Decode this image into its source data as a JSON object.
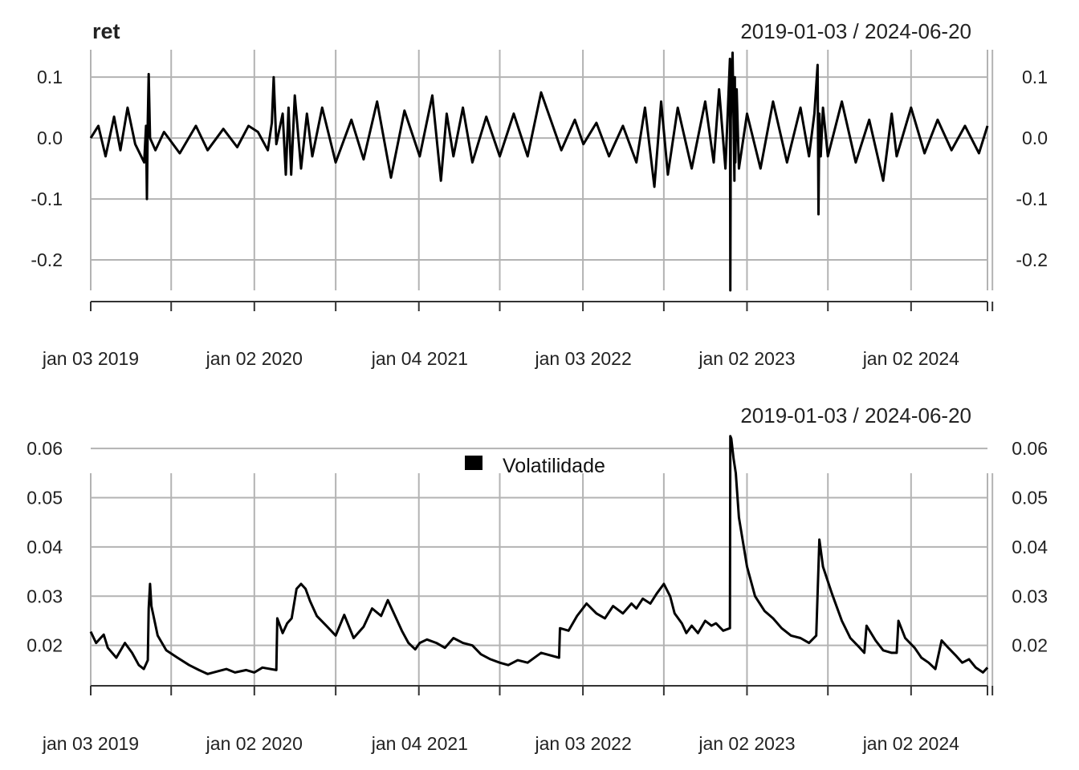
{
  "chart_data": [
    {
      "type": "line",
      "title": "ret",
      "date_range": "2019-01-03 / 2024-06-20",
      "x_tick_labels": [
        "jan 03 2019",
        "jan 02 2020",
        "jan 04 2021",
        "jan 03 2022",
        "jan 02 2023",
        "jan 02 2024"
      ],
      "y_tick_labels": [
        "0.1",
        "0.0",
        "-0.1",
        "-0.2"
      ],
      "y_ticks": [
        0.1,
        0.0,
        -0.1,
        -0.2
      ],
      "ylim": [
        -0.25,
        0.145
      ],
      "xlim": [
        "2019-01-03",
        "2024-06-20"
      ],
      "grid": true,
      "series": [
        {
          "color": "#000000",
          "x": [
            "2019-01-03",
            "2019-01-20",
            "2019-02-05",
            "2019-02-24",
            "2019-03-10",
            "2019-03-26",
            "2019-04-12",
            "2019-05-02",
            "2019-05-06",
            "2019-05-08",
            "2019-05-10",
            "2019-05-12",
            "2019-05-15",
            "2019-05-27",
            "2019-06-15",
            "2019-07-20",
            "2019-08-25",
            "2019-09-20",
            "2019-10-25",
            "2019-11-25",
            "2019-12-20",
            "2020-01-10",
            "2020-02-01",
            "2020-02-10",
            "2020-02-14",
            "2020-02-20",
            "2020-03-05",
            "2020-03-12",
            "2020-03-18",
            "2020-03-24",
            "2020-04-01",
            "2020-04-15",
            "2020-04-28",
            "2020-05-10",
            "2020-06-01",
            "2020-07-01",
            "2020-08-05",
            "2020-09-01",
            "2020-10-01",
            "2020-11-01",
            "2020-12-01",
            "2021-01-04",
            "2021-02-01",
            "2021-02-20",
            "2021-03-05",
            "2021-03-20",
            "2021-04-10",
            "2021-05-01",
            "2021-06-01",
            "2021-07-01",
            "2021-08-01",
            "2021-09-01",
            "2021-10-01",
            "2021-11-15",
            "2021-12-15",
            "2022-01-03",
            "2022-02-01",
            "2022-03-01",
            "2022-04-01",
            "2022-05-01",
            "2022-05-20",
            "2022-06-10",
            "2022-06-25",
            "2022-07-10",
            "2022-08-01",
            "2022-09-01",
            "2022-10-01",
            "2022-10-20",
            "2022-11-01",
            "2022-11-15",
            "2022-11-25",
            "2022-11-26",
            "2022-11-27",
            "2022-12-01",
            "2022-12-05",
            "2022-12-06",
            "2022-12-07",
            "2022-12-10",
            "2022-12-15",
            "2023-01-02",
            "2023-02-01",
            "2023-03-01",
            "2023-04-01",
            "2023-05-01",
            "2023-05-20",
            "2023-06-01",
            "2023-06-08",
            "2023-06-10",
            "2023-06-12",
            "2023-06-15",
            "2023-06-20",
            "2023-07-01",
            "2023-08-01",
            "2023-09-01",
            "2023-10-01",
            "2023-11-01",
            "2023-11-20",
            "2023-12-01",
            "2024-01-02",
            "2024-02-01",
            "2024-03-01",
            "2024-04-01",
            "2024-05-01",
            "2024-06-01",
            "2024-06-20"
          ],
          "values": [
            0.0,
            0.02,
            -0.03,
            0.035,
            -0.02,
            0.05,
            -0.01,
            -0.04,
            0.02,
            -0.1,
            0.03,
            0.105,
            0.0,
            -0.02,
            0.01,
            -0.025,
            0.02,
            -0.02,
            0.015,
            -0.015,
            0.02,
            0.01,
            -0.02,
            0.025,
            0.1,
            -0.01,
            0.04,
            -0.06,
            0.05,
            -0.06,
            0.07,
            -0.05,
            0.04,
            -0.03,
            0.05,
            -0.04,
            0.03,
            -0.035,
            0.06,
            -0.065,
            0.045,
            -0.03,
            0.07,
            -0.07,
            0.04,
            -0.03,
            0.05,
            -0.04,
            0.035,
            -0.03,
            0.04,
            -0.03,
            0.075,
            -0.02,
            0.03,
            -0.01,
            0.025,
            -0.03,
            0.02,
            -0.04,
            0.05,
            -0.08,
            0.06,
            -0.06,
            0.05,
            -0.05,
            0.06,
            -0.04,
            0.08,
            -0.05,
            0.13,
            -0.25,
            0.03,
            0.14,
            -0.07,
            0.1,
            -0.04,
            0.08,
            -0.05,
            0.04,
            -0.05,
            0.06,
            -0.04,
            0.05,
            -0.03,
            0.04,
            0.12,
            -0.125,
            0.04,
            -0.03,
            0.05,
            -0.03,
            0.06,
            -0.04,
            0.03,
            -0.07,
            0.04,
            -0.03,
            0.05,
            -0.025,
            0.03,
            -0.02,
            0.02,
            -0.025,
            0.02
          ]
        }
      ]
    },
    {
      "type": "line",
      "title": "",
      "date_range": "2019-01-03 / 2024-06-20",
      "legend": [
        "Volatilidade"
      ],
      "legend_position": "top-center",
      "x_tick_labels": [
        "jan 03 2019",
        "jan 02 2020",
        "jan 04 2021",
        "jan 03 2022",
        "jan 02 2023",
        "jan 02 2024"
      ],
      "y_tick_labels": [
        "0.06",
        "0.05",
        "0.04",
        "0.03",
        "0.02"
      ],
      "y_ticks": [
        0.06,
        0.05,
        0.04,
        0.03,
        0.02
      ],
      "ylim": [
        0.0118,
        0.0628
      ],
      "xlim": [
        "2019-01-03",
        "2024-06-20"
      ],
      "grid": true,
      "series": [
        {
          "name": "Volatilidade",
          "color": "#000000",
          "x": [
            "2019-01-03",
            "2019-01-15",
            "2019-02-01",
            "2019-02-10",
            "2019-03-01",
            "2019-03-20",
            "2019-04-05",
            "2019-04-20",
            "2019-05-01",
            "2019-05-10",
            "2019-05-12",
            "2019-05-15",
            "2019-05-18",
            "2019-06-01",
            "2019-06-20",
            "2019-07-15",
            "2019-08-10",
            "2019-09-01",
            "2019-09-20",
            "2019-10-15",
            "2019-11-01",
            "2019-11-20",
            "2019-12-15",
            "2020-01-02",
            "2020-01-20",
            "2020-02-20",
            "2020-02-22",
            "2020-03-05",
            "2020-03-15",
            "2020-03-25",
            "2020-04-05",
            "2020-04-15",
            "2020-04-25",
            "2020-05-05",
            "2020-05-20",
            "2020-06-10",
            "2020-07-01",
            "2020-07-20",
            "2020-08-10",
            "2020-09-01",
            "2020-09-20",
            "2020-10-10",
            "2020-10-25",
            "2020-11-10",
            "2020-11-25",
            "2020-12-10",
            "2020-12-25",
            "2021-01-04",
            "2021-01-20",
            "2021-02-10",
            "2021-03-01",
            "2021-03-20",
            "2021-04-10",
            "2021-05-01",
            "2021-05-20",
            "2021-06-10",
            "2021-07-01",
            "2021-07-20",
            "2021-08-10",
            "2021-09-01",
            "2021-10-01",
            "2021-11-10",
            "2021-11-12",
            "2021-12-01",
            "2021-12-20",
            "2022-01-10",
            "2022-02-01",
            "2022-02-20",
            "2022-03-10",
            "2022-04-01",
            "2022-04-20",
            "2022-05-01",
            "2022-05-15",
            "2022-06-01",
            "2022-06-15",
            "2022-07-01",
            "2022-07-15",
            "2022-07-25",
            "2022-08-10",
            "2022-08-20",
            "2022-09-01",
            "2022-09-15",
            "2022-10-01",
            "2022-10-15",
            "2022-10-25",
            "2022-11-10",
            "2022-11-25",
            "2022-11-26",
            "2022-11-28",
            "2022-12-03",
            "2022-12-08",
            "2022-12-15",
            "2023-01-02",
            "2023-01-20",
            "2023-02-10",
            "2023-03-01",
            "2023-03-20",
            "2023-04-10",
            "2023-05-01",
            "2023-05-20",
            "2023-06-05",
            "2023-06-12",
            "2023-06-20",
            "2023-07-10",
            "2023-08-01",
            "2023-08-20",
            "2023-09-10",
            "2023-09-20",
            "2023-09-25",
            "2023-10-15",
            "2023-11-01",
            "2023-11-20",
            "2023-12-01",
            "2023-12-05",
            "2023-12-20",
            "2024-01-10",
            "2024-01-25",
            "2024-02-10",
            "2024-02-25",
            "2024-03-10",
            "2024-03-25",
            "2024-04-10",
            "2024-04-25",
            "2024-05-10",
            "2024-05-25",
            "2024-06-10",
            "2024-06-20"
          ],
          "values": [
            0.0228,
            0.0205,
            0.0222,
            0.0195,
            0.0175,
            0.0205,
            0.0185,
            0.016,
            0.0152,
            0.017,
            0.0275,
            0.0325,
            0.028,
            0.022,
            0.019,
            0.0175,
            0.016,
            0.015,
            0.0142,
            0.0148,
            0.0152,
            0.0145,
            0.015,
            0.0145,
            0.0155,
            0.015,
            0.0255,
            0.0225,
            0.0245,
            0.0255,
            0.0315,
            0.0325,
            0.0315,
            0.029,
            0.026,
            0.024,
            0.022,
            0.0262,
            0.0215,
            0.0238,
            0.0275,
            0.026,
            0.0292,
            0.026,
            0.023,
            0.0205,
            0.0192,
            0.0205,
            0.0212,
            0.0205,
            0.0195,
            0.0215,
            0.0205,
            0.02,
            0.0182,
            0.0172,
            0.0165,
            0.016,
            0.017,
            0.0165,
            0.0185,
            0.0175,
            0.0235,
            0.023,
            0.026,
            0.0285,
            0.0265,
            0.0255,
            0.028,
            0.0265,
            0.0285,
            0.0275,
            0.0295,
            0.0285,
            0.0305,
            0.0325,
            0.03,
            0.0265,
            0.0245,
            0.0225,
            0.024,
            0.0225,
            0.025,
            0.024,
            0.0245,
            0.023,
            0.0235,
            0.0625,
            0.062,
            0.058,
            0.055,
            0.046,
            0.036,
            0.03,
            0.027,
            0.0255,
            0.0235,
            0.022,
            0.0215,
            0.0205,
            0.022,
            0.0415,
            0.036,
            0.0305,
            0.025,
            0.0215,
            0.0195,
            0.0185,
            0.024,
            0.021,
            0.019,
            0.0185,
            0.0185,
            0.025,
            0.0215,
            0.0195,
            0.0175,
            0.0165,
            0.0152,
            0.021,
            0.0195,
            0.018,
            0.0165,
            0.0172,
            0.0155,
            0.0145,
            0.0155
          ]
        }
      ]
    }
  ]
}
